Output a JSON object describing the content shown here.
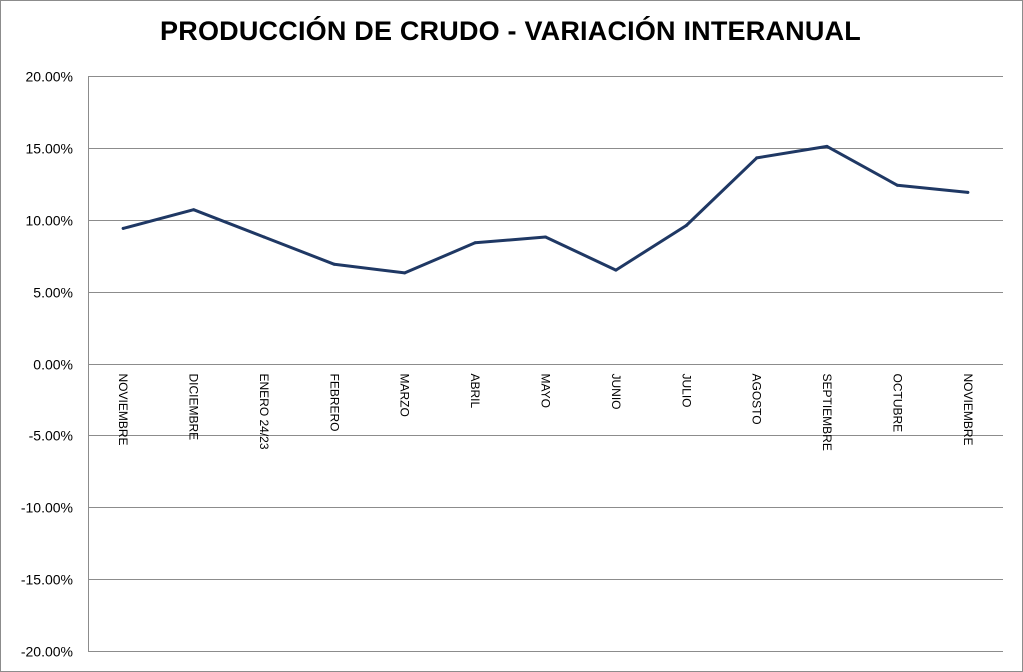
{
  "chart_data": {
    "type": "line",
    "title": "PRODUCCIÓN DE CRUDO - VARIACIÓN INTERANUAL",
    "xlabel": "",
    "ylabel": "",
    "ylim": [
      -0.2,
      0.2
    ],
    "yticks": [
      0.2,
      0.15,
      0.1,
      0.05,
      0.0,
      -0.05,
      -0.1,
      -0.15,
      -0.2
    ],
    "ytick_labels": [
      "20.00%",
      "15.00%",
      "10.00%",
      "5.00%",
      "0.00%",
      "-5.00%",
      "-10.00%",
      "-15.00%",
      "-20.00%"
    ],
    "categories": [
      "NOVIEMBRE",
      "DICIEMBRE",
      "ENERO 24/23",
      "FEBRERO",
      "MARZO",
      "ABRIL",
      "MAYO",
      "JUNIO",
      "JULIO",
      "AGOSTO",
      "SEPTIEMBRE",
      "OCTUBRE",
      "NOVIEMBRE"
    ],
    "series": [
      {
        "values": [
          0.094,
          0.107,
          0.088,
          0.069,
          0.063,
          0.084,
          0.088,
          0.065,
          0.096,
          0.143,
          0.151,
          0.124,
          0.119
        ],
        "color": "#1f3864"
      }
    ],
    "grid": true,
    "legend": "none"
  }
}
